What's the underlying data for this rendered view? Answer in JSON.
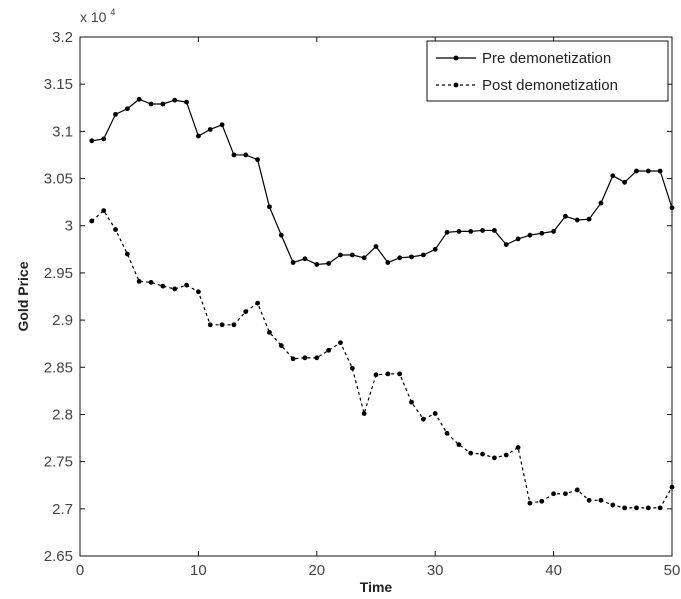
{
  "chart_data": {
    "type": "line",
    "title": "",
    "xlabel": "Time",
    "ylabel": "Gold Price",
    "xlim": [
      0,
      50
    ],
    "ylim": [
      26500,
      32000
    ],
    "x_ticks": [
      0,
      10,
      20,
      30,
      40,
      50
    ],
    "x_tick_labels": [
      "0",
      "10",
      "20",
      "30",
      "40",
      "50"
    ],
    "y_ticks": [
      26500,
      27000,
      27500,
      28000,
      28500,
      29000,
      29500,
      30000,
      30500,
      31000,
      31500,
      32000
    ],
    "y_tick_labels": [
      "2.65",
      "2.7",
      "2.75",
      "2.8",
      "2.85",
      "2.9",
      "2.95",
      "3",
      "3.05",
      "3.1",
      "3.15",
      "3.2"
    ],
    "y_multiplier": {
      "base": "x 10",
      "exponent": "4"
    },
    "grid": false,
    "legend_position": "top-right",
    "series": [
      {
        "name": "Pre demonetization",
        "line_style": "solid",
        "color": "#000000",
        "x": [
          1,
          2,
          3,
          4,
          5,
          6,
          7,
          8,
          9,
          10,
          11,
          12,
          13,
          14,
          15,
          16,
          17,
          18,
          19,
          20,
          21,
          22,
          23,
          24,
          25,
          26,
          27,
          28,
          29,
          30,
          31,
          32,
          33,
          34,
          35,
          36,
          37,
          38,
          39,
          40,
          41,
          42,
          43,
          44,
          45,
          46,
          47,
          48,
          49,
          50
        ],
        "y": [
          30900,
          30920,
          31180,
          31240,
          31340,
          31290,
          31290,
          31330,
          31310,
          30950,
          31020,
          31070,
          30750,
          30750,
          30700,
          30200,
          29900,
          29610,
          29650,
          29590,
          29600,
          29690,
          29690,
          29660,
          29780,
          29610,
          29660,
          29670,
          29690,
          29750,
          29930,
          29940,
          29940,
          29950,
          29950,
          29800,
          29860,
          29900,
          29920,
          29940,
          30100,
          30060,
          30070,
          30240,
          30530,
          30460,
          30580,
          30580,
          30580,
          30190
        ]
      },
      {
        "name": "Post demonetization",
        "line_style": "dashed",
        "color": "#000000",
        "x": [
          1,
          2,
          3,
          4,
          5,
          6,
          7,
          8,
          9,
          10,
          11,
          12,
          13,
          14,
          15,
          16,
          17,
          18,
          19,
          20,
          21,
          22,
          23,
          24,
          25,
          26,
          27,
          28,
          29,
          30,
          31,
          32,
          33,
          34,
          35,
          36,
          37,
          38,
          39,
          40,
          41,
          42,
          43,
          44,
          45,
          46,
          47,
          48,
          49,
          50
        ],
        "y": [
          30050,
          30160,
          29960,
          29700,
          29410,
          29400,
          29360,
          29330,
          29370,
          29300,
          28950,
          28950,
          28950,
          29090,
          29180,
          28870,
          28730,
          28590,
          28600,
          28600,
          28680,
          28760,
          28490,
          28010,
          28420,
          28430,
          28430,
          28130,
          27950,
          28010,
          27800,
          27680,
          27590,
          27580,
          27540,
          27570,
          27650,
          27060,
          27080,
          27160,
          27160,
          27200,
          27090,
          27090,
          27040,
          27010,
          27010,
          27010,
          27010,
          27230
        ]
      }
    ]
  }
}
